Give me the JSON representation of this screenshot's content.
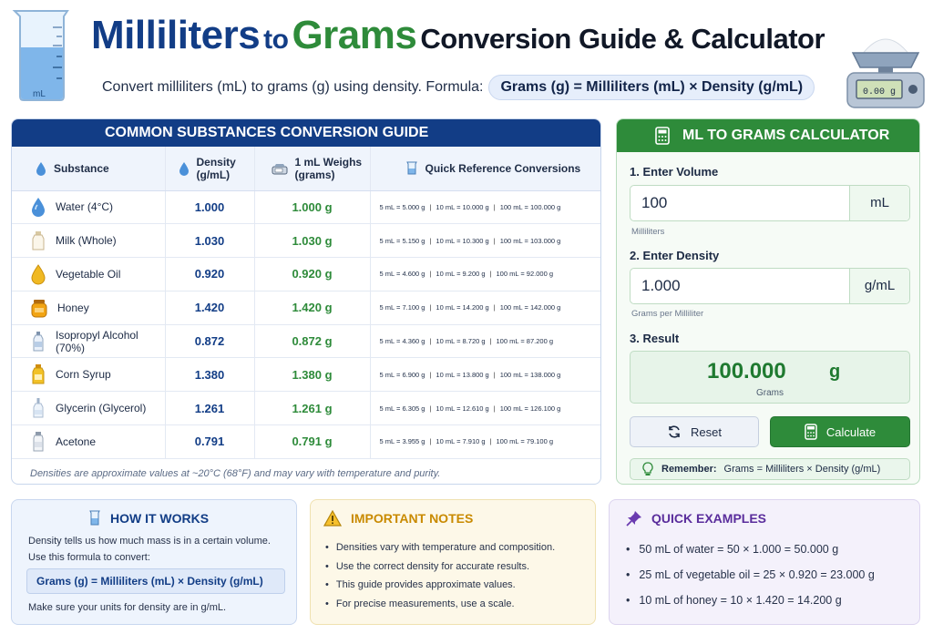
{
  "header": {
    "title_part1": "Milliliters",
    "title_part2": "to",
    "title_part3": "Grams",
    "title_part4": "Conversion Guide & Calculator",
    "subtitle": "Convert milliliters (mL) to grams (g) using density.  Formula:",
    "formula": "Grams (g) = Milliliters (mL) × Density (g/mL)",
    "beaker_label": "mL",
    "scale_display": "0.00 g"
  },
  "guide": {
    "title": "COMMON SUBSTANCES CONVERSION GUIDE",
    "columns": {
      "substance": "Substance",
      "density_line1": "Density",
      "density_line2": "(g/mL)",
      "weight_line1": "1 mL Weighs",
      "weight_line2": "(grams)",
      "quick": "Quick Reference Conversions"
    },
    "rows": [
      {
        "name": "Water (4°C)",
        "icon": "water-drop",
        "density": "1.000",
        "weight": "1.000 g",
        "q1": "5 mL = 5.000 g",
        "q2": "10 mL = 10.000 g",
        "q3": "100 mL = 100.000 g"
      },
      {
        "name": "Milk (Whole)",
        "icon": "milk-bottle",
        "density": "1.030",
        "weight": "1.030 g",
        "q1": "5 mL = 5.150 g",
        "q2": "10 mL = 10.300 g",
        "q3": "100 mL = 103.000 g"
      },
      {
        "name": "Vegetable Oil",
        "icon": "oil-drop",
        "density": "0.920",
        "weight": "0.920 g",
        "q1": "5 mL = 4.600 g",
        "q2": "10 mL = 9.200 g",
        "q3": "100 mL = 92.000 g"
      },
      {
        "name": "Honey",
        "icon": "honey-jar",
        "density": "1.420",
        "weight": "1.420 g",
        "q1": "5 mL = 7.100 g",
        "q2": "10 mL = 14.200 g",
        "q3": "100 mL = 142.000 g"
      },
      {
        "name": "Isopropyl Alcohol (70%)",
        "icon": "alcohol-bottle",
        "density": "0.872",
        "weight": "0.872 g",
        "q1": "5 mL = 4.360 g",
        "q2": "10 mL = 8.720 g",
        "q3": "100 mL = 87.200 g"
      },
      {
        "name": "Corn Syrup",
        "icon": "syrup-bottle",
        "density": "1.380",
        "weight": "1.380 g",
        "q1": "5 mL = 6.900 g",
        "q2": "10 mL = 13.800 g",
        "q3": "100 mL = 138.000 g"
      },
      {
        "name": "Glycerin (Glycerol)",
        "icon": "dropper-bottle",
        "density": "1.261",
        "weight": "1.261 g",
        "q1": "5 mL = 6.305 g",
        "q2": "10 mL = 12.610 g",
        "q3": "100 mL = 126.100 g"
      },
      {
        "name": "Acetone",
        "icon": "acetone-bottle",
        "density": "0.791",
        "weight": "0.791 g",
        "q1": "5 mL = 3.955 g",
        "q2": "10 mL = 7.910 g",
        "q3": "100 mL = 79.100 g"
      }
    ],
    "separator": "|",
    "note": "Densities are approximate values at ~20°C (68°F) and may vary with temperature and purity."
  },
  "calculator": {
    "title": "ML TO GRAMS CALCULATOR",
    "step1": "1. Enter Volume",
    "volume_value": "100",
    "volume_unit": "mL",
    "volume_hint": "Milliliters",
    "step2": "2. Enter Density",
    "density_value": "1.000",
    "density_unit": "g/mL",
    "density_hint": "Grams per Milliliter",
    "step3": "3. Result",
    "result_value": "100.000",
    "result_unit": "g",
    "result_caption": "Grams",
    "reset_label": "Reset",
    "calculate_label": "Calculate",
    "remember_label": "Remember:",
    "remember_text": "Grams = Milliliters × Density (g/mL)"
  },
  "how_it_works": {
    "title": "HOW IT WORKS",
    "text_line1": "Density tells us how much mass is in a certain volume.",
    "text_line2": "Use this formula to convert:",
    "formula": "Grams (g) = Milliliters (mL) × Density (g/mL)",
    "footer": "Make sure your units for density are in g/mL."
  },
  "notes": {
    "title": "IMPORTANT NOTES",
    "items": [
      "Densities vary with temperature and composition.",
      "Use the correct density for accurate results.",
      "This guide provides approximate values.",
      "For precise measurements, use a scale."
    ]
  },
  "examples": {
    "title": "QUICK EXAMPLES",
    "items": [
      "50 mL of water = 50 × 1.000 = 50.000 g",
      "25 mL of vegetable oil = 25 × 0.920 = 23.000 g",
      "10 mL of honey = 10 × 1.420 = 14.200 g"
    ]
  },
  "colors": {
    "navy": "#123d86",
    "green": "#2e8b3a",
    "amber": "#c98a00",
    "purple": "#5a2d9c"
  }
}
